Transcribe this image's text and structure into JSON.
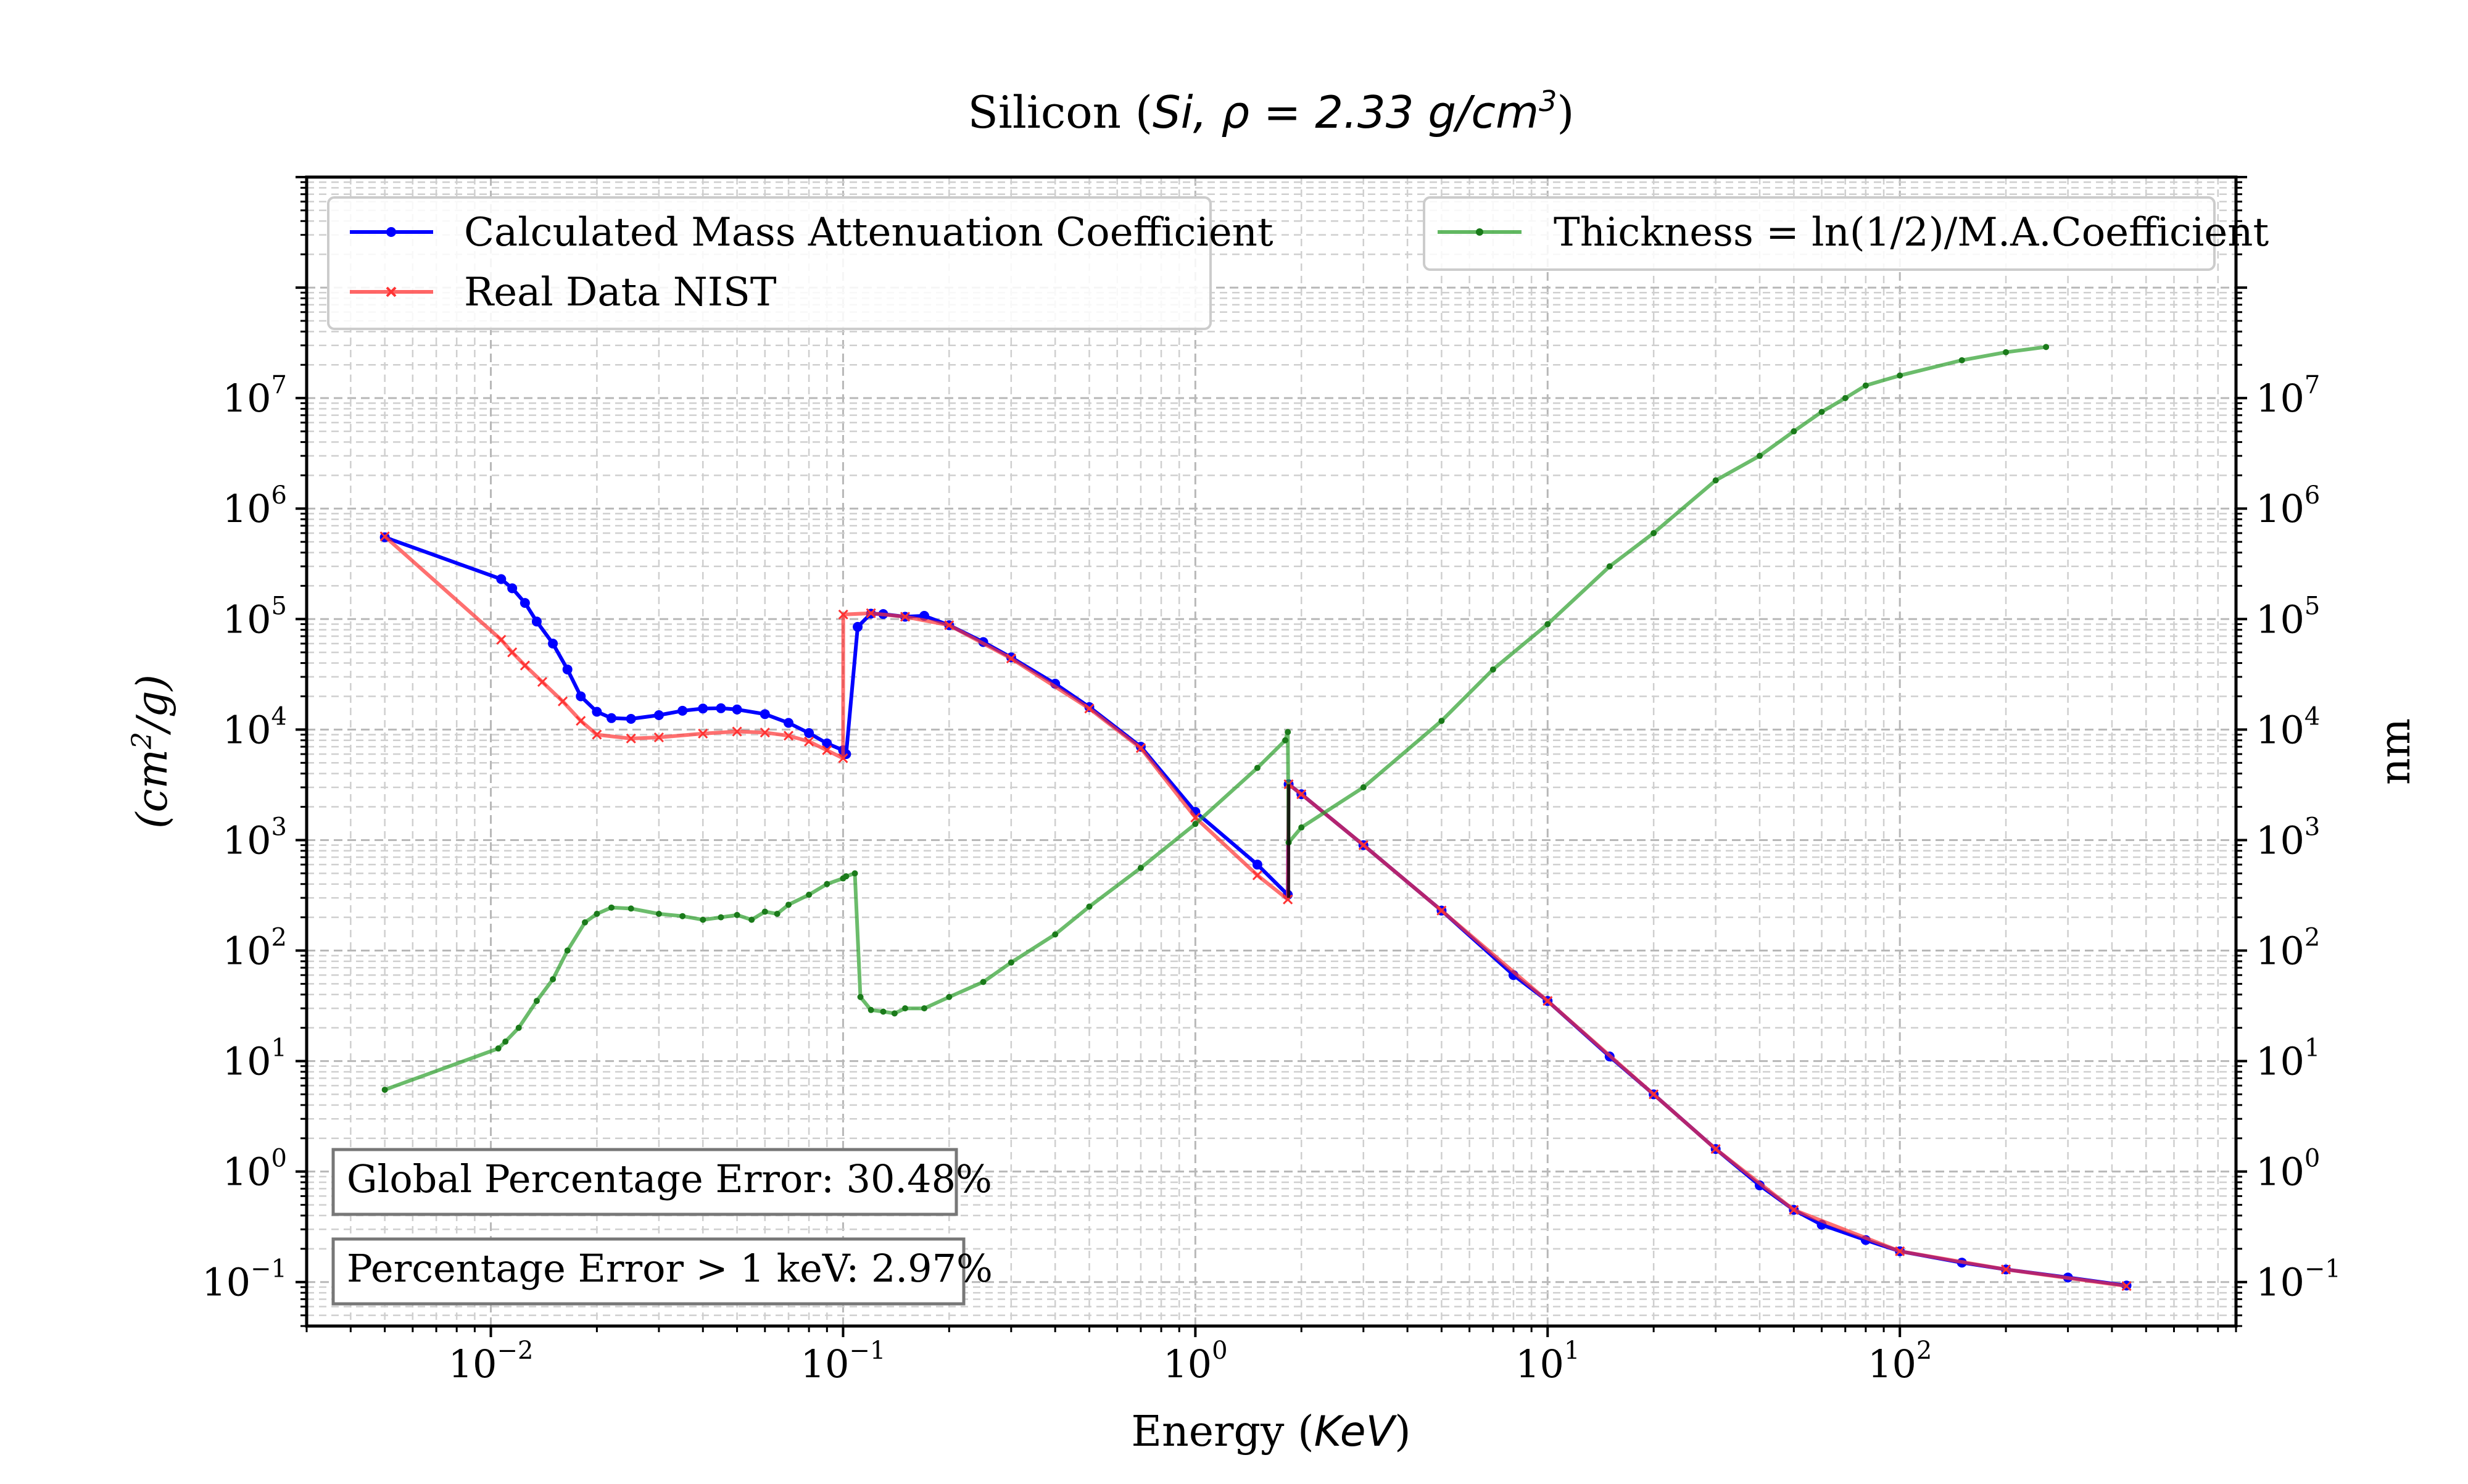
{
  "chart_data": {
    "type": "line",
    "title": "Silicon (Si, ρ = 2.33 g/cm³)",
    "title_parts": {
      "prefix": "Silicon (",
      "formula": "Si,  ρ = 2.33 g/cm",
      "exponent": "3",
      "suffix": ")"
    },
    "xlabel": "Energy (KeV)",
    "xlabel_parts": {
      "prefix": "Energy (",
      "unit": "KeV",
      "suffix": ")"
    },
    "ylabel_left": "(cm²/g)",
    "ylabel_left_parts": {
      "prefix": "(cm",
      "exponent": "2",
      "suffix": "/g)"
    },
    "ylabel_right": "nm",
    "x_scale": "log",
    "y_scale": "log",
    "xlim": [
      0.003,
      900
    ],
    "ylim": [
      0.04,
      1000000000
    ],
    "grid": true,
    "x_ticks": [
      {
        "value": 0.01,
        "base": "10",
        "exp": "−2"
      },
      {
        "value": 0.1,
        "base": "10",
        "exp": "−1"
      },
      {
        "value": 1,
        "base": "10",
        "exp": "0"
      },
      {
        "value": 10,
        "base": "10",
        "exp": "1"
      },
      {
        "value": 100,
        "base": "10",
        "exp": "2"
      }
    ],
    "y_ticks": [
      {
        "value": 0.1,
        "base": "10",
        "exp": "−1"
      },
      {
        "value": 1,
        "base": "10",
        "exp": "0"
      },
      {
        "value": 10,
        "base": "10",
        "exp": "1"
      },
      {
        "value": 100,
        "base": "10",
        "exp": "2"
      },
      {
        "value": 1000,
        "base": "10",
        "exp": "3"
      },
      {
        "value": 10000,
        "base": "10",
        "exp": "4"
      },
      {
        "value": 100000,
        "base": "10",
        "exp": "5"
      },
      {
        "value": 1000000,
        "base": "10",
        "exp": "6"
      },
      {
        "value": 10000000,
        "base": "10",
        "exp": "7"
      }
    ],
    "legend_left": {
      "placement": "top-left",
      "entries": [
        "Calculated Mass Attenuation Coefficient",
        "Real Data NIST"
      ]
    },
    "legend_right": {
      "placement": "top-right",
      "entries": [
        "Thickness = ln(1/2)/M.A.Coefficient"
      ]
    },
    "annotations": [
      "Global Percentage Error: 30.48%",
      "Percentage Error > 1 keV: 2.97%"
    ],
    "series": [
      {
        "name": "Calculated Mass Attenuation Coefficient",
        "color": "#0000ff",
        "marker": "dot",
        "axis": "left",
        "points": [
          [
            0.005,
            550000
          ],
          [
            0.0107,
            230000
          ],
          [
            0.0115,
            190000
          ],
          [
            0.0125,
            140000
          ],
          [
            0.0135,
            95000
          ],
          [
            0.015,
            60000
          ],
          [
            0.0165,
            35000
          ],
          [
            0.018,
            20000
          ],
          [
            0.02,
            14500
          ],
          [
            0.022,
            12700
          ],
          [
            0.025,
            12500
          ],
          [
            0.03,
            13500
          ],
          [
            0.035,
            14800
          ],
          [
            0.04,
            15500
          ],
          [
            0.045,
            15600
          ],
          [
            0.05,
            15200
          ],
          [
            0.06,
            13800
          ],
          [
            0.07,
            11500
          ],
          [
            0.08,
            9300
          ],
          [
            0.09,
            7500
          ],
          [
            0.1,
            6500
          ],
          [
            0.102,
            6000
          ],
          [
            0.11,
            85000
          ],
          [
            0.12,
            112000
          ],
          [
            0.13,
            111000
          ],
          [
            0.15,
            105000
          ],
          [
            0.17,
            107000
          ],
          [
            0.2,
            88000
          ],
          [
            0.25,
            62000
          ],
          [
            0.3,
            45000
          ],
          [
            0.4,
            26000
          ],
          [
            0.5,
            16000
          ],
          [
            0.7,
            7000
          ],
          [
            1.0,
            1800
          ],
          [
            1.5,
            600
          ],
          [
            1.83,
            320
          ],
          [
            1.84,
            3200
          ],
          [
            2.0,
            2600
          ],
          [
            3.0,
            900
          ],
          [
            5.0,
            230
          ],
          [
            8.0,
            60
          ],
          [
            10.0,
            35
          ],
          [
            15.0,
            11
          ],
          [
            20.0,
            5
          ],
          [
            30.0,
            1.6
          ],
          [
            40.0,
            0.75
          ],
          [
            50.0,
            0.45
          ],
          [
            60.0,
            0.33
          ],
          [
            80.0,
            0.24
          ],
          [
            100.0,
            0.19
          ],
          [
            150.0,
            0.15
          ],
          [
            200.0,
            0.13
          ],
          [
            300.0,
            0.11
          ],
          [
            440.0,
            0.093
          ]
        ]
      },
      {
        "name": "Real Data NIST",
        "color": "#ff3333",
        "marker": "x",
        "axis": "left",
        "points": [
          [
            0.005,
            560000
          ],
          [
            0.0107,
            65000
          ],
          [
            0.0115,
            50000
          ],
          [
            0.0125,
            38000
          ],
          [
            0.014,
            27000
          ],
          [
            0.016,
            18000
          ],
          [
            0.018,
            12000
          ],
          [
            0.02,
            9000
          ],
          [
            0.025,
            8300
          ],
          [
            0.03,
            8500
          ],
          [
            0.04,
            9200
          ],
          [
            0.05,
            9600
          ],
          [
            0.06,
            9400
          ],
          [
            0.07,
            8800
          ],
          [
            0.08,
            7800
          ],
          [
            0.09,
            6500
          ],
          [
            0.1,
            5500
          ],
          [
            0.1001,
            110000
          ],
          [
            0.12,
            113000
          ],
          [
            0.15,
            105000
          ],
          [
            0.2,
            88000
          ],
          [
            0.3,
            44000
          ],
          [
            0.5,
            15500
          ],
          [
            0.7,
            6800
          ],
          [
            1.0,
            1600
          ],
          [
            1.5,
            480
          ],
          [
            1.83,
            290
          ],
          [
            1.84,
            3200
          ],
          [
            2.0,
            2600
          ],
          [
            3.0,
            900
          ],
          [
            5.0,
            230
          ],
          [
            10.0,
            35
          ],
          [
            20.0,
            5
          ],
          [
            30.0,
            1.6
          ],
          [
            50.0,
            0.45
          ],
          [
            100.0,
            0.19
          ],
          [
            200.0,
            0.13
          ],
          [
            440.0,
            0.092
          ]
        ]
      },
      {
        "name": "Thickness = ln(1/2)/M.A.Coefficient",
        "color": "#2ca02c",
        "marker": "dot",
        "axis": "right",
        "points": [
          [
            0.005,
            5.5
          ],
          [
            0.0105,
            13
          ],
          [
            0.011,
            15
          ],
          [
            0.012,
            20
          ],
          [
            0.0135,
            35
          ],
          [
            0.015,
            55
          ],
          [
            0.0165,
            100
          ],
          [
            0.0185,
            180
          ],
          [
            0.02,
            215
          ],
          [
            0.022,
            245
          ],
          [
            0.025,
            240
          ],
          [
            0.03,
            215
          ],
          [
            0.035,
            205
          ],
          [
            0.04,
            190
          ],
          [
            0.045,
            200
          ],
          [
            0.05,
            210
          ],
          [
            0.055,
            190
          ],
          [
            0.06,
            225
          ],
          [
            0.065,
            215
          ],
          [
            0.07,
            260
          ],
          [
            0.08,
            320
          ],
          [
            0.09,
            400
          ],
          [
            0.1,
            450
          ],
          [
            0.102,
            470
          ],
          [
            0.108,
            500
          ],
          [
            0.112,
            38
          ],
          [
            0.12,
            29
          ],
          [
            0.13,
            28
          ],
          [
            0.14,
            27
          ],
          [
            0.15,
            30
          ],
          [
            0.17,
            30
          ],
          [
            0.2,
            38
          ],
          [
            0.25,
            52
          ],
          [
            0.3,
            78
          ],
          [
            0.4,
            140
          ],
          [
            0.5,
            250
          ],
          [
            0.7,
            560
          ],
          [
            1.0,
            1400
          ],
          [
            1.5,
            4500
          ],
          [
            1.8,
            8000
          ],
          [
            1.83,
            9500
          ],
          [
            1.84,
            950
          ],
          [
            2.0,
            1300
          ],
          [
            3.0,
            3000
          ],
          [
            5.0,
            12000
          ],
          [
            7.0,
            35000
          ],
          [
            10.0,
            90000
          ],
          [
            15.0,
            300000
          ],
          [
            20.0,
            600000
          ],
          [
            30.0,
            1800000
          ],
          [
            40.0,
            3000000
          ],
          [
            50.0,
            5000000
          ],
          [
            60.0,
            7500000
          ],
          [
            70.0,
            10000000
          ],
          [
            80.0,
            13000000
          ],
          [
            100.0,
            16000000
          ],
          [
            150.0,
            22000000
          ],
          [
            200.0,
            26000000
          ],
          [
            260.0,
            29000000
          ]
        ]
      },
      {
        "name": "",
        "color": "#000000",
        "marker": "none",
        "axis": "left",
        "points": [
          [
            1.84,
            300
          ],
          [
            1.84,
            3200
          ]
        ]
      }
    ]
  }
}
